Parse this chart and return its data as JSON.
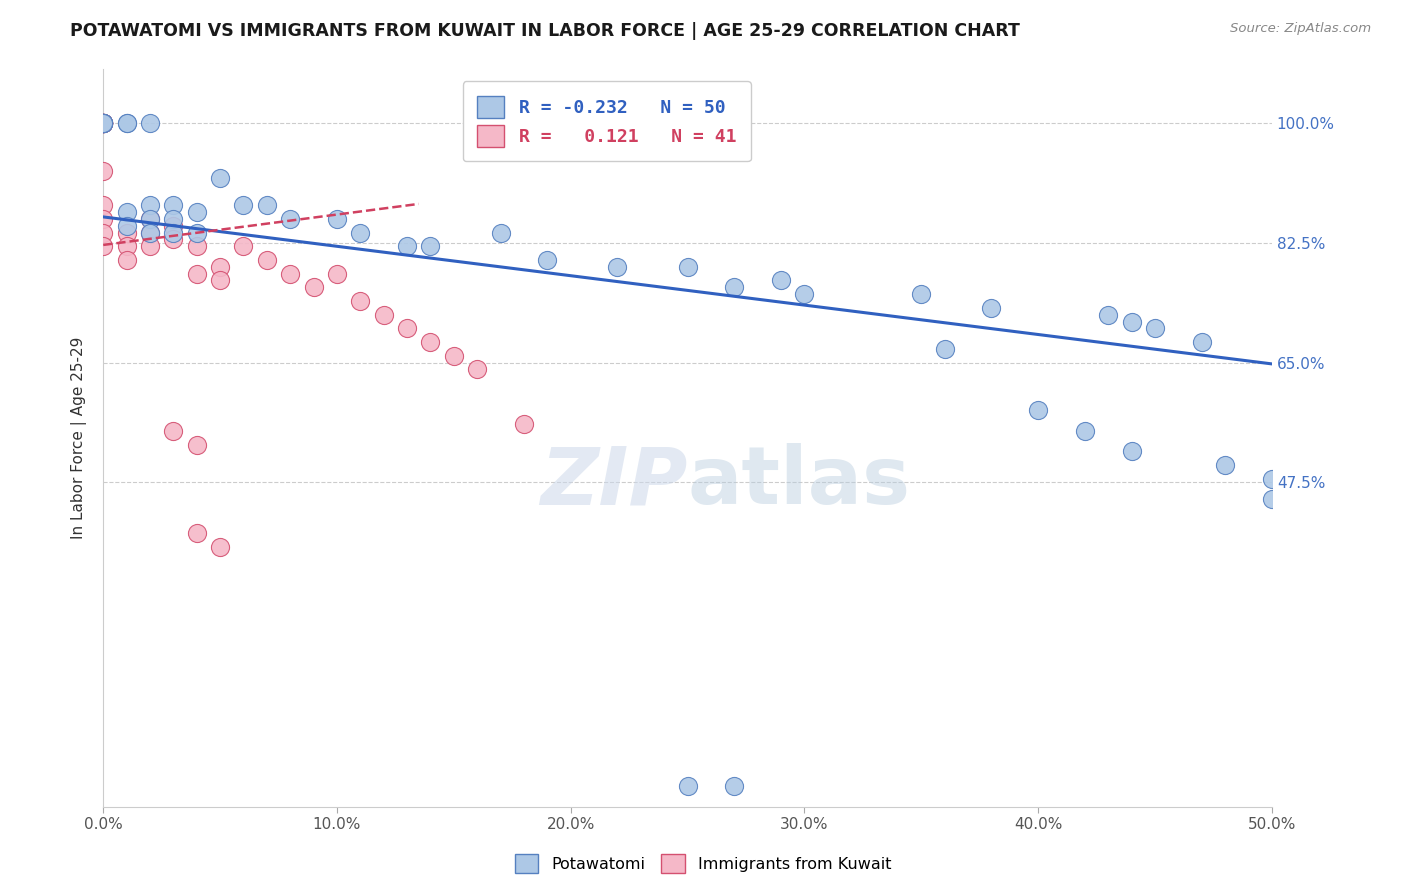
{
  "title": "POTAWATOMI VS IMMIGRANTS FROM KUWAIT IN LABOR FORCE | AGE 25-29 CORRELATION CHART",
  "source": "Source: ZipAtlas.com",
  "ylabel": "In Labor Force | Age 25-29",
  "xmin": 0.0,
  "xmax": 0.5,
  "ymin": 0.0,
  "ymax": 1.08,
  "yticks": [
    0.475,
    0.65,
    0.825,
    1.0
  ],
  "ytick_labels": [
    "47.5%",
    "65.0%",
    "82.5%",
    "100.0%"
  ],
  "xticks": [
    0.0,
    0.1,
    0.2,
    0.3,
    0.4,
    0.5
  ],
  "xtick_labels": [
    "0.0%",
    "10.0%",
    "20.0%",
    "30.0%",
    "40.0%",
    "50.0%"
  ],
  "blue_R": "-0.232",
  "blue_N": "50",
  "pink_R": "0.121",
  "pink_N": "41",
  "blue_color": "#adc8e6",
  "pink_color": "#f5b8c8",
  "blue_edge_color": "#5580c0",
  "pink_edge_color": "#d45070",
  "blue_line_color": "#3060c0",
  "pink_line_color": "#d04060",
  "watermark": "ZIPatlas",
  "blue_points_x": [
    0.0,
    0.0,
    0.0,
    0.0,
    0.0,
    0.0,
    0.0,
    0.01,
    0.01,
    0.01,
    0.01,
    0.02,
    0.02,
    0.02,
    0.02,
    0.03,
    0.03,
    0.03,
    0.04,
    0.04,
    0.05,
    0.06,
    0.07,
    0.08,
    0.1,
    0.11,
    0.13,
    0.14,
    0.17,
    0.19,
    0.22,
    0.25,
    0.27,
    0.29,
    0.3,
    0.35,
    0.38,
    0.43,
    0.44,
    0.45,
    0.47,
    0.25,
    0.27,
    0.36,
    0.4,
    0.42,
    0.44,
    0.48,
    0.5,
    0.5
  ],
  "blue_points_y": [
    1.0,
    1.0,
    1.0,
    1.0,
    1.0,
    1.0,
    1.0,
    1.0,
    1.0,
    0.87,
    0.85,
    1.0,
    0.88,
    0.86,
    0.84,
    0.88,
    0.86,
    0.84,
    0.87,
    0.84,
    0.92,
    0.88,
    0.88,
    0.86,
    0.86,
    0.84,
    0.82,
    0.82,
    0.84,
    0.8,
    0.79,
    0.79,
    0.76,
    0.77,
    0.75,
    0.75,
    0.73,
    0.72,
    0.71,
    0.7,
    0.68,
    0.03,
    0.03,
    0.67,
    0.58,
    0.55,
    0.52,
    0.5,
    0.48,
    0.45
  ],
  "pink_points_x": [
    0.0,
    0.0,
    0.0,
    0.0,
    0.0,
    0.0,
    0.0,
    0.0,
    0.0,
    0.0,
    0.0,
    0.0,
    0.0,
    0.01,
    0.01,
    0.01,
    0.02,
    0.02,
    0.02,
    0.03,
    0.03,
    0.04,
    0.04,
    0.05,
    0.05,
    0.06,
    0.07,
    0.08,
    0.09,
    0.1,
    0.11,
    0.12,
    0.13,
    0.14,
    0.15,
    0.16,
    0.18,
    0.03,
    0.04,
    0.04,
    0.05
  ],
  "pink_points_y": [
    1.0,
    1.0,
    1.0,
    1.0,
    1.0,
    1.0,
    1.0,
    1.0,
    0.93,
    0.88,
    0.86,
    0.84,
    0.82,
    0.84,
    0.82,
    0.8,
    0.86,
    0.84,
    0.82,
    0.85,
    0.83,
    0.82,
    0.78,
    0.79,
    0.77,
    0.82,
    0.8,
    0.78,
    0.76,
    0.78,
    0.74,
    0.72,
    0.7,
    0.68,
    0.66,
    0.64,
    0.56,
    0.55,
    0.53,
    0.4,
    0.38
  ],
  "blue_trendline_x": [
    0.0,
    0.5
  ],
  "blue_trendline_y": [
    0.863,
    0.648
  ],
  "pink_trendline_x": [
    0.0,
    0.135
  ],
  "pink_trendline_y": [
    0.822,
    0.882
  ]
}
